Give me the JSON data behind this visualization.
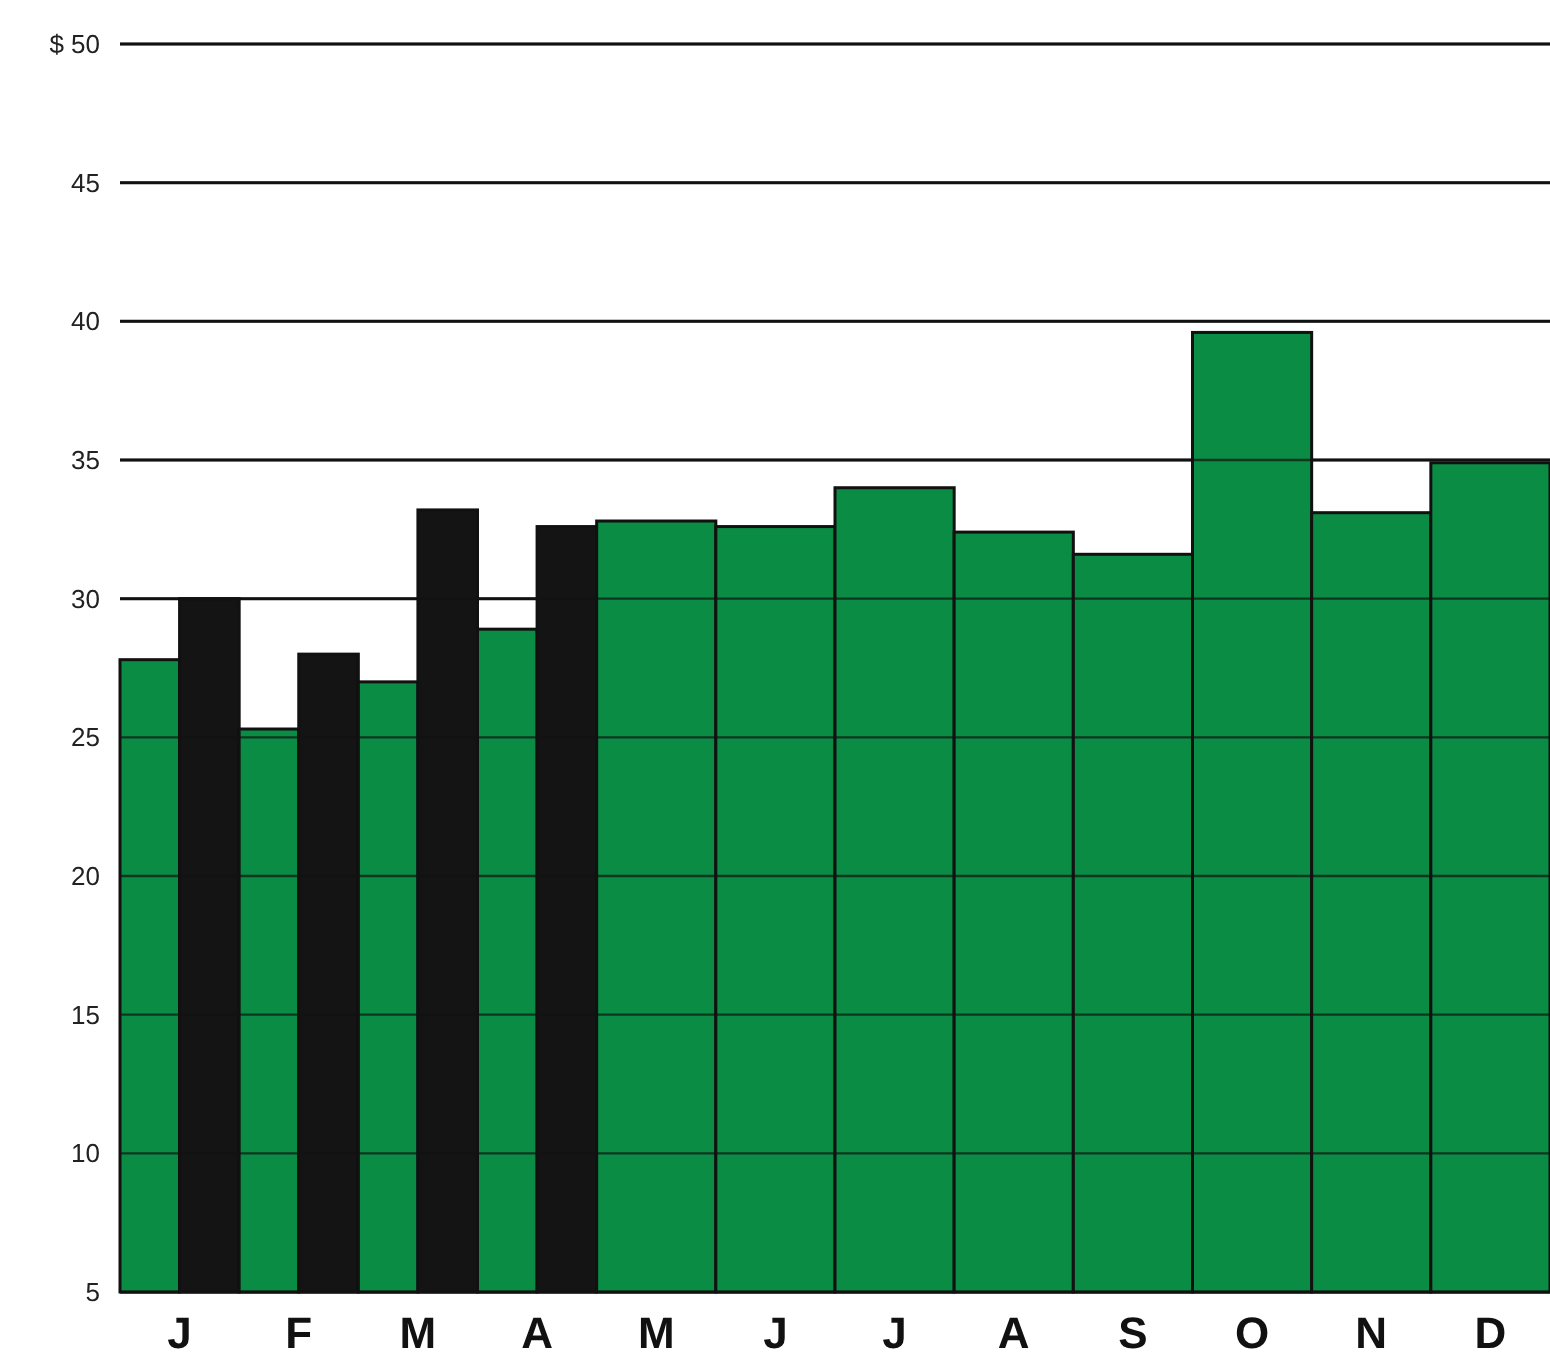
{
  "chart_data": {
    "type": "bar",
    "categories": [
      "J",
      "F",
      "M",
      "A",
      "M",
      "J",
      "J",
      "A",
      "S",
      "O",
      "N",
      "D"
    ],
    "series": [
      {
        "color": "#0a8c45",
        "values": [
          27.8,
          25.3,
          27.0,
          28.9,
          32.8,
          32.6,
          34.0,
          32.4,
          31.6,
          39.6,
          33.1,
          34.9
        ]
      },
      {
        "color": "#141414",
        "values": [
          30.0,
          28.0,
          33.2,
          32.6,
          null,
          null,
          null,
          null,
          null,
          null,
          null,
          null
        ]
      }
    ],
    "ylim": [
      5,
      50
    ],
    "yticks": [
      5,
      10,
      15,
      20,
      25,
      30,
      35,
      40,
      45,
      {
        "value": 50,
        "label": "$ 50"
      }
    ],
    "grid": "y"
  }
}
